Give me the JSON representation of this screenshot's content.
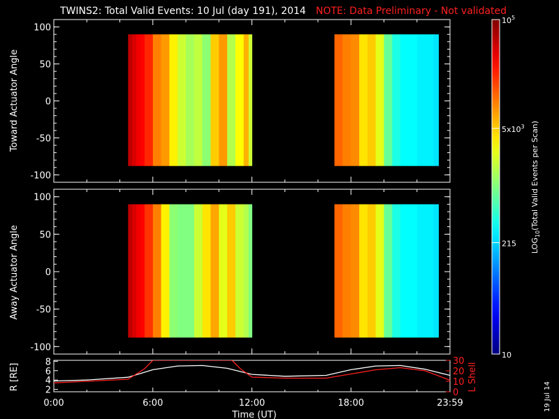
{
  "title": "TWINS2: Total Valid Events: 10 Jul (day 191), 2014",
  "note": "NOTE: Data Preliminary - Not validated",
  "date_stamp": "19 Jul 14",
  "colors": {
    "note": "#ff2020",
    "lshell": "#ff2020",
    "r": "#ffffff",
    "frame": "#ffffff"
  },
  "chart_data": [
    {
      "type": "heatmap",
      "panel": "toward",
      "ylabel": "Toward Actuator Angle",
      "ylim": [
        -110,
        110
      ],
      "yticks": [
        "100",
        "50",
        "0",
        "-50",
        "-100"
      ],
      "xlim_hours": [
        0,
        24
      ],
      "data_y_range": [
        -88,
        90
      ],
      "segments": [
        {
          "start_hour": 4.5,
          "end_hour": 12.0
        },
        {
          "start_hour": 17.0,
          "end_hour": 23.3
        }
      ],
      "column_log_values": [
        [
          4.5,
          4.75
        ],
        [
          4.75,
          4.65
        ],
        [
          5.0,
          4.55
        ],
        [
          5.25,
          4.5
        ],
        [
          5.5,
          4.35
        ],
        [
          6.0,
          4.0
        ],
        [
          6.5,
          3.9
        ],
        [
          7.0,
          3.55
        ],
        [
          7.5,
          3.3
        ],
        [
          8.0,
          3.15
        ],
        [
          8.5,
          3.25
        ],
        [
          9.0,
          3.05
        ],
        [
          9.5,
          3.7
        ],
        [
          10.0,
          3.9
        ],
        [
          10.5,
          3.2
        ],
        [
          11.0,
          3.5
        ],
        [
          11.5,
          3.8
        ],
        [
          11.8,
          3.3
        ]
      ],
      "column_log_values_2": [
        [
          17.0,
          4.1
        ],
        [
          17.5,
          4.0
        ],
        [
          18.0,
          3.95
        ],
        [
          18.5,
          3.6
        ],
        [
          19.0,
          3.7
        ],
        [
          19.5,
          3.4
        ],
        [
          20.0,
          2.9
        ],
        [
          20.5,
          2.6
        ],
        [
          21.0,
          2.5
        ],
        [
          22.0,
          2.45
        ],
        [
          23.0,
          2.4
        ]
      ]
    },
    {
      "type": "heatmap",
      "panel": "away",
      "ylabel": "Away Actuator Angle",
      "ylim": [
        -110,
        110
      ],
      "yticks": [
        "100",
        "50",
        "0",
        "-50",
        "-100"
      ],
      "xlim_hours": [
        0,
        24
      ],
      "data_y_range": [
        -88,
        90
      ],
      "segments": [
        {
          "start_hour": 4.5,
          "end_hour": 12.0
        },
        {
          "start_hour": 17.0,
          "end_hour": 23.3
        }
      ],
      "column_log_values": [
        [
          4.5,
          4.75
        ],
        [
          4.75,
          4.65
        ],
        [
          5.0,
          4.55
        ],
        [
          5.25,
          4.5
        ],
        [
          5.5,
          4.3
        ],
        [
          6.0,
          4.0
        ],
        [
          6.5,
          3.55
        ],
        [
          7.0,
          3.05
        ],
        [
          7.5,
          3.0
        ],
        [
          8.0,
          3.0
        ],
        [
          8.5,
          3.3
        ],
        [
          9.0,
          3.6
        ],
        [
          9.5,
          3.85
        ],
        [
          10.0,
          3.4
        ],
        [
          10.5,
          3.7
        ],
        [
          11.0,
          3.3
        ],
        [
          11.5,
          3.2
        ],
        [
          11.8,
          3.0
        ]
      ],
      "column_log_values_2": [
        [
          17.0,
          4.1
        ],
        [
          17.5,
          4.0
        ],
        [
          18.0,
          3.95
        ],
        [
          18.5,
          3.6
        ],
        [
          19.0,
          3.7
        ],
        [
          19.5,
          3.4
        ],
        [
          20.0,
          2.9
        ],
        [
          20.5,
          2.6
        ],
        [
          21.0,
          2.5
        ],
        [
          22.0,
          2.45
        ],
        [
          23.0,
          2.4
        ]
      ]
    },
    {
      "type": "line",
      "panel": "ephemeris",
      "ylabel_left": "R [RE]",
      "ylabel_right": "L Shell",
      "xlabel": "Time (UT)",
      "xticks": [
        "0:00",
        "6:00",
        "12:00",
        "18:00",
        "23:59"
      ],
      "ylim_left": [
        1.5,
        8.2
      ],
      "ylim_right": [
        0,
        30
      ],
      "yticks_left": [
        "8",
        "6",
        "4",
        "2"
      ],
      "yticks_right": [
        "30",
        "20",
        "10",
        "0"
      ],
      "series": [
        {
          "name": "R",
          "axis": "left",
          "x": [
            0,
            2,
            4.5,
            6,
            7.5,
            9,
            10.5,
            12,
            14,
            16.5,
            18,
            19.5,
            21,
            22.5,
            24
          ],
          "y": [
            3.8,
            4.0,
            4.6,
            6.2,
            7.0,
            7.1,
            6.5,
            5.2,
            4.8,
            5.0,
            6.2,
            7.0,
            7.1,
            6.3,
            5.0
          ]
        },
        {
          "name": "L Shell",
          "axis": "right",
          "x": [
            0,
            2,
            4.5,
            5.5,
            6.0,
            10.8,
            11.3,
            12,
            14,
            16.5,
            18,
            19.5,
            21,
            22.5,
            24
          ],
          "y": [
            8.5,
            10,
            12,
            22,
            30,
            30,
            22,
            14,
            13,
            13,
            17,
            21,
            23,
            20,
            11
          ]
        }
      ]
    }
  ],
  "colorbar": {
    "label": "LOG10(Total Valid Events per Scan)",
    "label_main": "LOG",
    "label_sub": "10",
    "label_rest": "(Total Valid Events per Scan)",
    "log_range": [
      1,
      5
    ],
    "ticks": [
      {
        "log": 5,
        "base": "10",
        "exp": "5",
        "mant": ""
      },
      {
        "log": 3.699,
        "base": "x10",
        "exp": "3",
        "mant": "5"
      },
      {
        "log": 2.332,
        "base": "215",
        "exp": "",
        "mant": ""
      },
      {
        "log": 1,
        "base": "10",
        "exp": "",
        "mant": ""
      }
    ]
  }
}
